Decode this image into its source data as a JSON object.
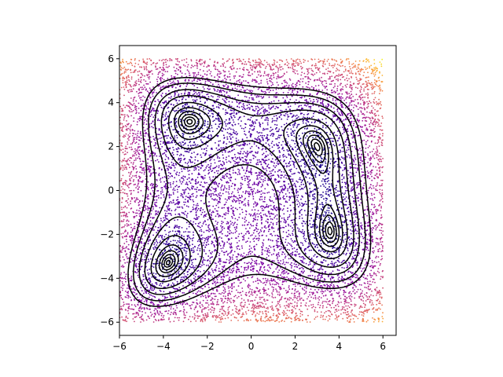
{
  "chart_data": {
    "type": "scatter",
    "title": "",
    "xlabel": "",
    "ylabel": "",
    "xlim": [
      -6,
      6.6
    ],
    "ylim": [
      -6.6,
      6.6
    ],
    "grid": false,
    "x_ticks": [
      -6,
      -4,
      -2,
      0,
      2,
      4,
      6
    ],
    "y_ticks": [
      -6,
      -4,
      -2,
      0,
      2,
      4,
      6
    ],
    "x_tick_labels": [
      "−6",
      "−4",
      "−2",
      "0",
      "2",
      "4",
      "6"
    ],
    "y_tick_labels": [
      "−6",
      "−4",
      "−2",
      "0",
      "2",
      "4",
      "6"
    ],
    "colormap": "plasma",
    "scatter_domain": {
      "x": [
        -6,
        6
      ],
      "y": [
        -6,
        6
      ]
    },
    "point_count_estimate": 10000,
    "point_color": "colormap of the contoured function value",
    "contour_color": "#000000",
    "function": "Himmelblau (x^2 + y - 11)^2 + (x + y^2 - 7)^2",
    "minima": [
      {
        "x": 3.0,
        "y": 2.0
      },
      {
        "x": -2.805,
        "y": 3.131
      },
      {
        "x": -3.779,
        "y": -3.283
      },
      {
        "x": 3.584,
        "y": -1.848
      }
    ],
    "contour_levels": [
      0.5,
      2,
      5,
      10,
      20,
      40,
      80,
      130,
      200,
      280
    ]
  }
}
